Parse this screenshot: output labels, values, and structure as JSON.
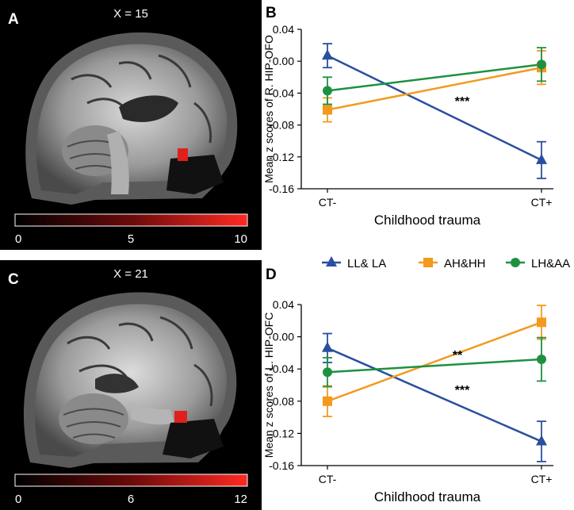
{
  "panels": {
    "a": {
      "letter": "A",
      "slice_label": "X = 15",
      "colorbar_ticks": [
        "0",
        "5",
        "10"
      ]
    },
    "c": {
      "letter": "C",
      "slice_label": "X = 21",
      "colorbar_ticks": [
        "0",
        "6",
        "12"
      ]
    }
  },
  "legend": [
    "LL& LA",
    "AH&HH",
    "LH&AA"
  ],
  "colors": {
    "blue": "#2a4fa0",
    "orange": "#f39a1e",
    "green": "#1e9140",
    "heat": "#e0201c"
  },
  "chart_data": [
    {
      "type": "line",
      "panel": "B",
      "title": "",
      "categories": [
        "CT-",
        "CT+"
      ],
      "xlabel": "Childhood trauma",
      "ylabel": "Mean z scores of R. HIP-OFO",
      "ylim": [
        -0.16,
        0.04
      ],
      "yticks": [
        "0.04",
        "0.00",
        "-0.04",
        "-0.08",
        "-0.12",
        "-0.16"
      ],
      "series": [
        {
          "name": "LL& LA",
          "values": [
            0.007,
            -0.124
          ],
          "errors": [
            0.015,
            0.023
          ],
          "marker": "triangle"
        },
        {
          "name": "AH&HH",
          "values": [
            -0.061,
            -0.008
          ],
          "errors": [
            0.015,
            0.021
          ],
          "marker": "square"
        },
        {
          "name": "LH&AA",
          "values": [
            -0.037,
            -0.004
          ],
          "errors": [
            0.017,
            0.021
          ],
          "marker": "circle"
        }
      ],
      "annotations": [
        {
          "text": "***",
          "series": "LL& LA"
        }
      ]
    },
    {
      "type": "line",
      "panel": "D",
      "title": "",
      "categories": [
        "CT-",
        "CT+"
      ],
      "xlabel": "Childhood trauma",
      "ylabel": "Mean z scores of L. HIP-OFC",
      "ylim": [
        -0.16,
        0.04
      ],
      "yticks": [
        "0.04",
        "0.00",
        "-0.04",
        "-0.08",
        "-0.12",
        "-0.16"
      ],
      "series": [
        {
          "name": "LL& LA",
          "values": [
            -0.014,
            -0.13
          ],
          "errors": [
            0.018,
            0.025
          ],
          "marker": "triangle"
        },
        {
          "name": "AH&HH",
          "values": [
            -0.08,
            0.018
          ],
          "errors": [
            0.019,
            0.021
          ],
          "marker": "square"
        },
        {
          "name": "LH&AA",
          "values": [
            -0.044,
            -0.028
          ],
          "errors": [
            0.018,
            0.027
          ],
          "marker": "circle"
        }
      ],
      "annotations": [
        {
          "text": "**",
          "series": "AH&HH"
        },
        {
          "text": "***",
          "series": "LL& LA"
        }
      ]
    }
  ]
}
